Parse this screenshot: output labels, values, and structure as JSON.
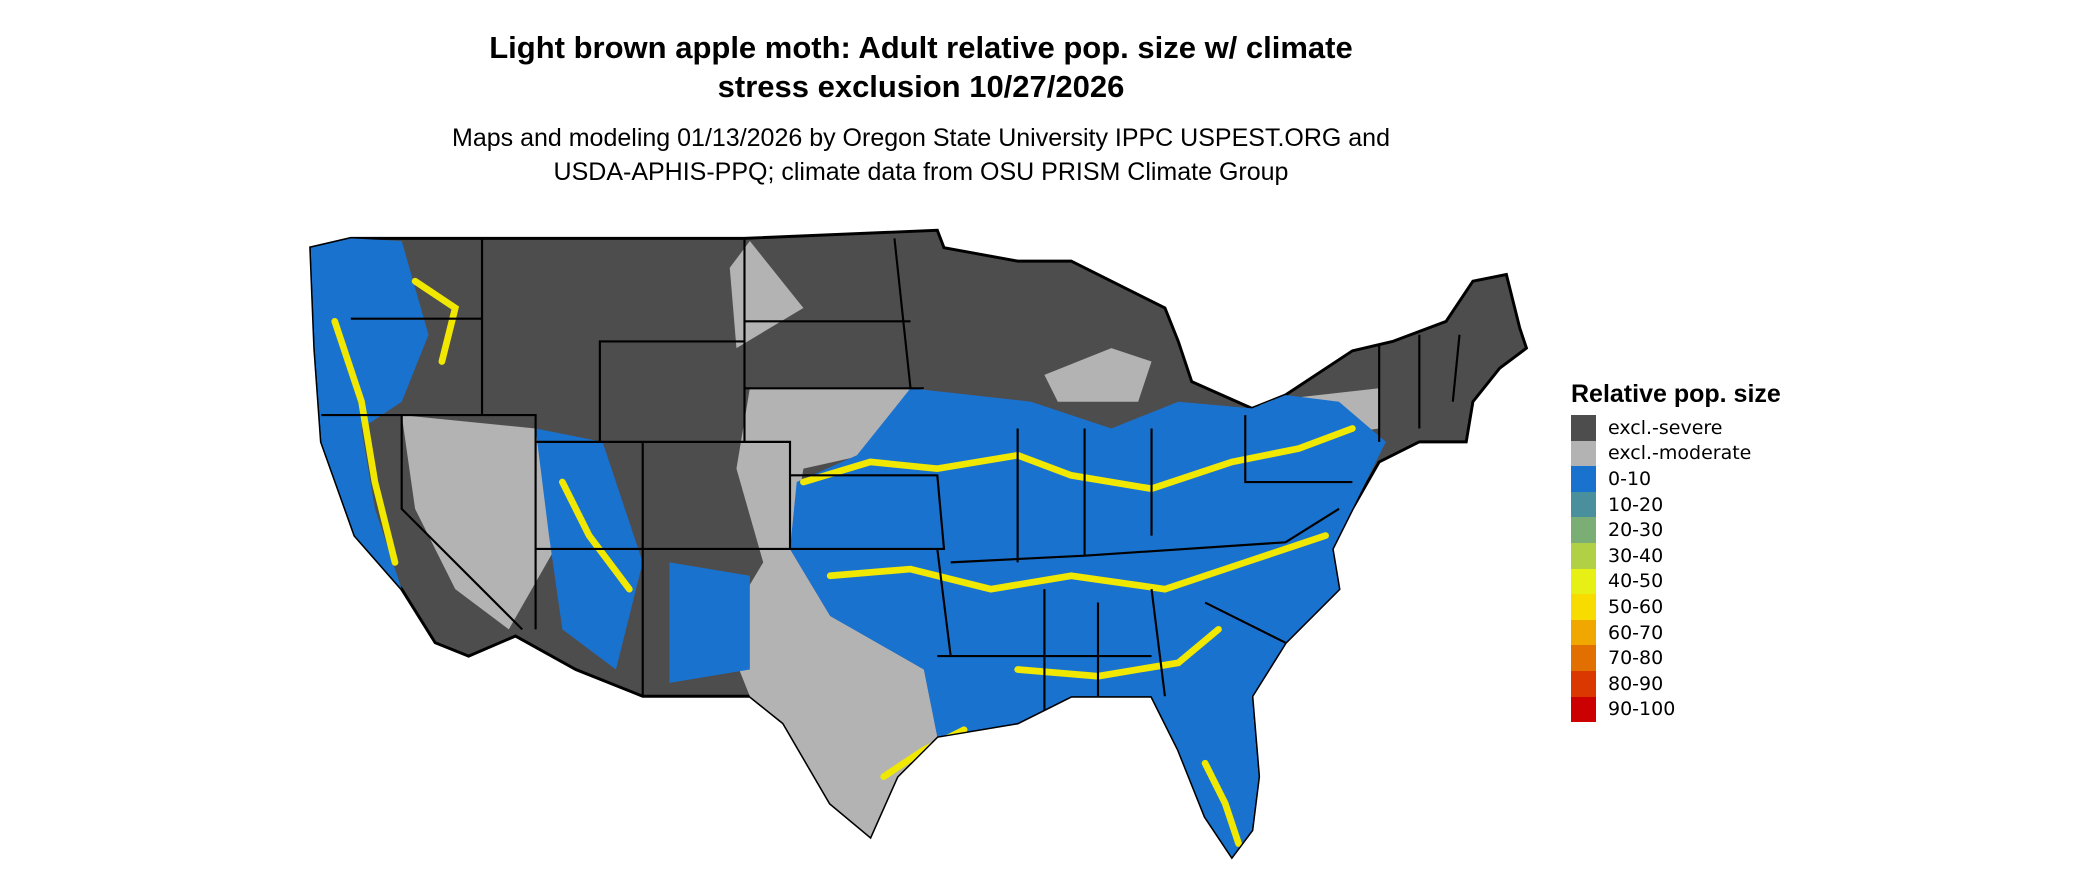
{
  "title": {
    "line1": "Light brown apple moth: Adult relative pop. size w/ climate",
    "line2": "stress exclusion 10/27/2026"
  },
  "subtitle": {
    "line1": "Maps and modeling 01/13/2026 by Oregon State University IPPC USPEST.ORG and",
    "line2": "USDA-APHIS-PPQ; climate data from OSU PRISM Climate Group"
  },
  "legend": {
    "title": "Relative pop. size",
    "items": [
      {
        "label": "excl.-severe",
        "color": "#4d4d4d"
      },
      {
        "label": "excl.-moderate",
        "color": "#b3b3b3"
      },
      {
        "label": "0-10",
        "color": "#1a72cf"
      },
      {
        "label": "10-20",
        "color": "#4a909c"
      },
      {
        "label": "20-30",
        "color": "#7aae75"
      },
      {
        "label": "30-40",
        "color": "#b2d046"
      },
      {
        "label": "40-50",
        "color": "#e6f015"
      },
      {
        "label": "50-60",
        "color": "#f8dc00"
      },
      {
        "label": "60-70",
        "color": "#f0a800"
      },
      {
        "label": "70-80",
        "color": "#e27000"
      },
      {
        "label": "80-90",
        "color": "#da3800"
      },
      {
        "label": "90-100",
        "color": "#cc0000"
      }
    ]
  }
}
